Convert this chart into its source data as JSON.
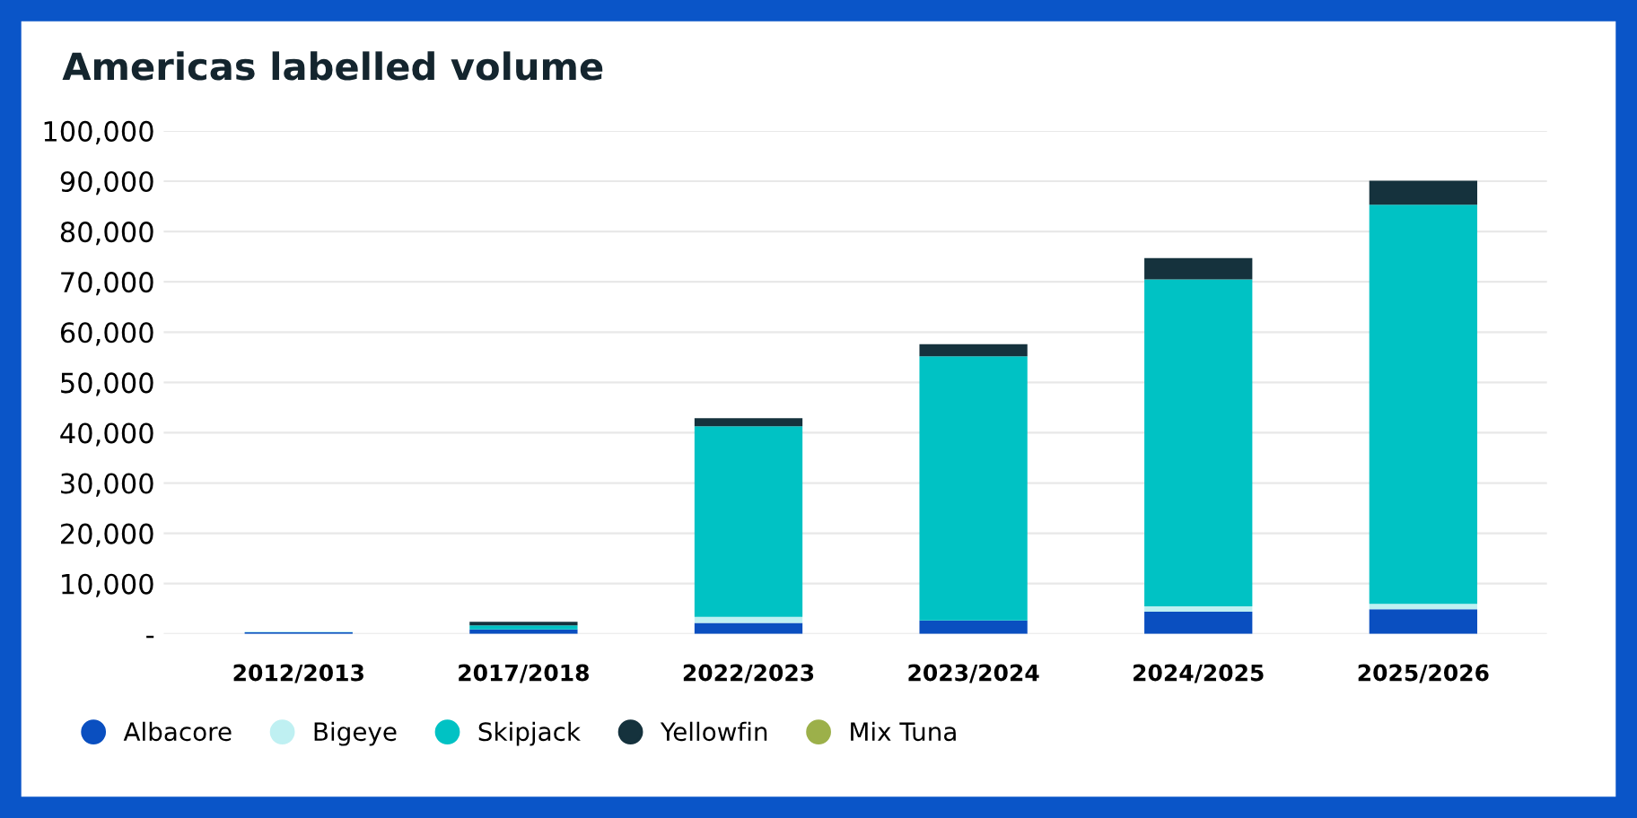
{
  "chart_data": {
    "type": "bar",
    "title": "Americas labelled volume",
    "stacked": true,
    "categories": [
      "2012/2013",
      "2017/2018",
      "2022/2023",
      "2023/2024",
      "2024/2025",
      "2025/2026"
    ],
    "series": [
      {
        "name": "Albacore",
        "color": "#0a4fc0",
        "values": [
          300,
          900,
          2200,
          2700,
          4400,
          4900
        ]
      },
      {
        "name": "Bigeye",
        "color": "#bff0f2",
        "values": [
          200,
          null,
          1200,
          null,
          1100,
          1100
        ]
      },
      {
        "name": "Skipjack",
        "color": "#00c2c4",
        "values": [
          0,
          800,
          37900,
          52500,
          65000,
          79300
        ]
      },
      {
        "name": "Yellowfin",
        "color": "#15323d",
        "values": [
          0,
          700,
          1600,
          2400,
          4200,
          4800
        ]
      },
      {
        "name": "Mix Tuna",
        "color": "#9cb04a",
        "values": [
          0,
          0,
          0,
          0,
          0,
          0
        ]
      }
    ],
    "ylim": [
      0,
      100000
    ],
    "yticks": [
      {
        "value": 0,
        "label": "-"
      },
      {
        "value": 10000,
        "label": "10,000"
      },
      {
        "value": 20000,
        "label": "20,000"
      },
      {
        "value": 30000,
        "label": "30,000"
      },
      {
        "value": 40000,
        "label": "40,000"
      },
      {
        "value": 50000,
        "label": "50,000"
      },
      {
        "value": 60000,
        "label": "60,000"
      },
      {
        "value": 70000,
        "label": "70,000"
      },
      {
        "value": 80000,
        "label": "80,000"
      },
      {
        "value": 90000,
        "label": "90,000"
      },
      {
        "value": 100000,
        "label": "100,000"
      }
    ],
    "grid": "y",
    "legend": "bottom left"
  }
}
